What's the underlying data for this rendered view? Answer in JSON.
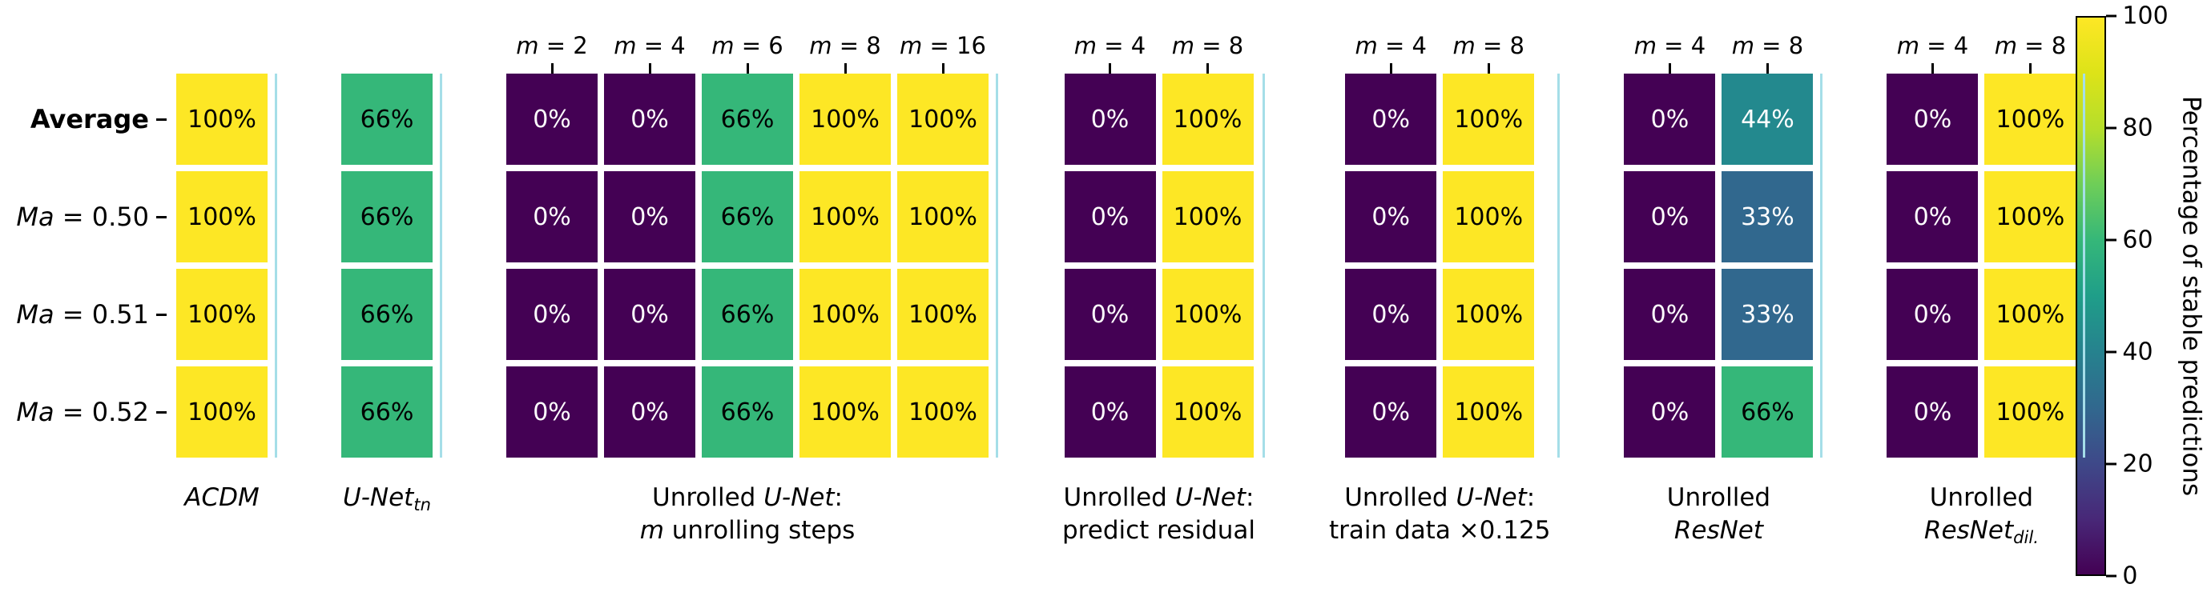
{
  "chart_data": {
    "type": "heatmap",
    "title": "",
    "unit": "%",
    "colormap": "viridis",
    "rows": [
      {
        "label": "Average",
        "segments": [
          {
            "t": "Average",
            "b": true
          }
        ]
      },
      {
        "label": "Ma = 0.50",
        "segments": [
          {
            "t": "Ma",
            "i": true
          },
          {
            "t": " = 0.50"
          }
        ]
      },
      {
        "label": "Ma = 0.51",
        "segments": [
          {
            "t": "Ma",
            "i": true
          },
          {
            "t": " = 0.51"
          }
        ]
      },
      {
        "label": "Ma = 0.52",
        "segments": [
          {
            "t": "Ma",
            "i": true
          },
          {
            "t": " = 0.52"
          }
        ]
      }
    ],
    "groups": [
      {
        "label": "ACDM",
        "label_lines": [
          [
            {
              "t": "ACDM",
              "i": true
            }
          ]
        ],
        "columns": [
          {
            "top_label": "",
            "values": [
              100,
              100,
              100,
              100
            ]
          }
        ]
      },
      {
        "label": "U-Net_tn",
        "label_lines": [
          [
            {
              "t": "U-Net",
              "i": true
            },
            {
              "t": "tn",
              "i": true,
              "sub": true
            }
          ]
        ],
        "columns": [
          {
            "top_label": "",
            "values": [
              66,
              66,
              66,
              66
            ]
          }
        ]
      },
      {
        "label": "Unrolled U-Net: m unrolling steps",
        "label_lines": [
          [
            {
              "t": "Unrolled "
            },
            {
              "t": "U-Net",
              "i": true
            },
            {
              "t": ":"
            }
          ],
          [
            {
              "t": "m",
              "i": true
            },
            {
              "t": " unrolling steps"
            }
          ]
        ],
        "columns": [
          {
            "top_label": "m = 2",
            "values": [
              0,
              0,
              0,
              0
            ]
          },
          {
            "top_label": "m = 4",
            "values": [
              0,
              0,
              0,
              0
            ]
          },
          {
            "top_label": "m = 6",
            "values": [
              66,
              66,
              66,
              66
            ]
          },
          {
            "top_label": "m = 8",
            "values": [
              100,
              100,
              100,
              100
            ]
          },
          {
            "top_label": "m = 16",
            "values": [
              100,
              100,
              100,
              100
            ]
          }
        ]
      },
      {
        "label": "Unrolled U-Net: predict residual",
        "label_lines": [
          [
            {
              "t": "Unrolled "
            },
            {
              "t": "U-Net",
              "i": true
            },
            {
              "t": ":"
            }
          ],
          [
            {
              "t": "predict residual"
            }
          ]
        ],
        "columns": [
          {
            "top_label": "m = 4",
            "values": [
              0,
              0,
              0,
              0
            ]
          },
          {
            "top_label": "m = 8",
            "values": [
              100,
              100,
              100,
              100
            ]
          }
        ]
      },
      {
        "label": "Unrolled U-Net: train data ×0.125",
        "label_lines": [
          [
            {
              "t": "Unrolled "
            },
            {
              "t": "U-Net",
              "i": true
            },
            {
              "t": ":"
            }
          ],
          [
            {
              "t": "train data ×0.125"
            }
          ]
        ],
        "columns": [
          {
            "top_label": "m = 4",
            "values": [
              0,
              0,
              0,
              0
            ]
          },
          {
            "top_label": "m = 8",
            "values": [
              100,
              100,
              100,
              100
            ]
          }
        ]
      },
      {
        "label": "Unrolled ResNet",
        "label_lines": [
          [
            {
              "t": "Unrolled"
            }
          ],
          [
            {
              "t": "ResNet",
              "i": true
            }
          ]
        ],
        "columns": [
          {
            "top_label": "m = 4",
            "values": [
              0,
              0,
              0,
              0
            ]
          },
          {
            "top_label": "m = 8",
            "values": [
              44,
              33,
              33,
              66
            ]
          }
        ]
      },
      {
        "label": "Unrolled ResNet_dil.",
        "label_lines": [
          [
            {
              "t": "Unrolled"
            }
          ],
          [
            {
              "t": "ResNet",
              "i": true
            },
            {
              "t": "dil.",
              "i": true,
              "sub": true
            }
          ]
        ],
        "columns": [
          {
            "top_label": "m = 4",
            "values": [
              0,
              0,
              0,
              0
            ]
          },
          {
            "top_label": "m = 8",
            "values": [
              100,
              100,
              100,
              100
            ]
          }
        ]
      }
    ],
    "value_colors": {
      "0": "#440154",
      "33": "#31688e",
      "44": "#23898e",
      "66": "#35b779",
      "100": "#fde725"
    },
    "value_text_colors": {
      "0": "#ffffff",
      "33": "#ffffff",
      "44": "#ffffff",
      "66": "#000000",
      "100": "#000000"
    },
    "colorbar": {
      "label": "Percentage of stable predictions",
      "ticks": [
        0,
        20,
        40,
        60,
        80,
        100
      ],
      "range": [
        0,
        100
      ]
    }
  }
}
